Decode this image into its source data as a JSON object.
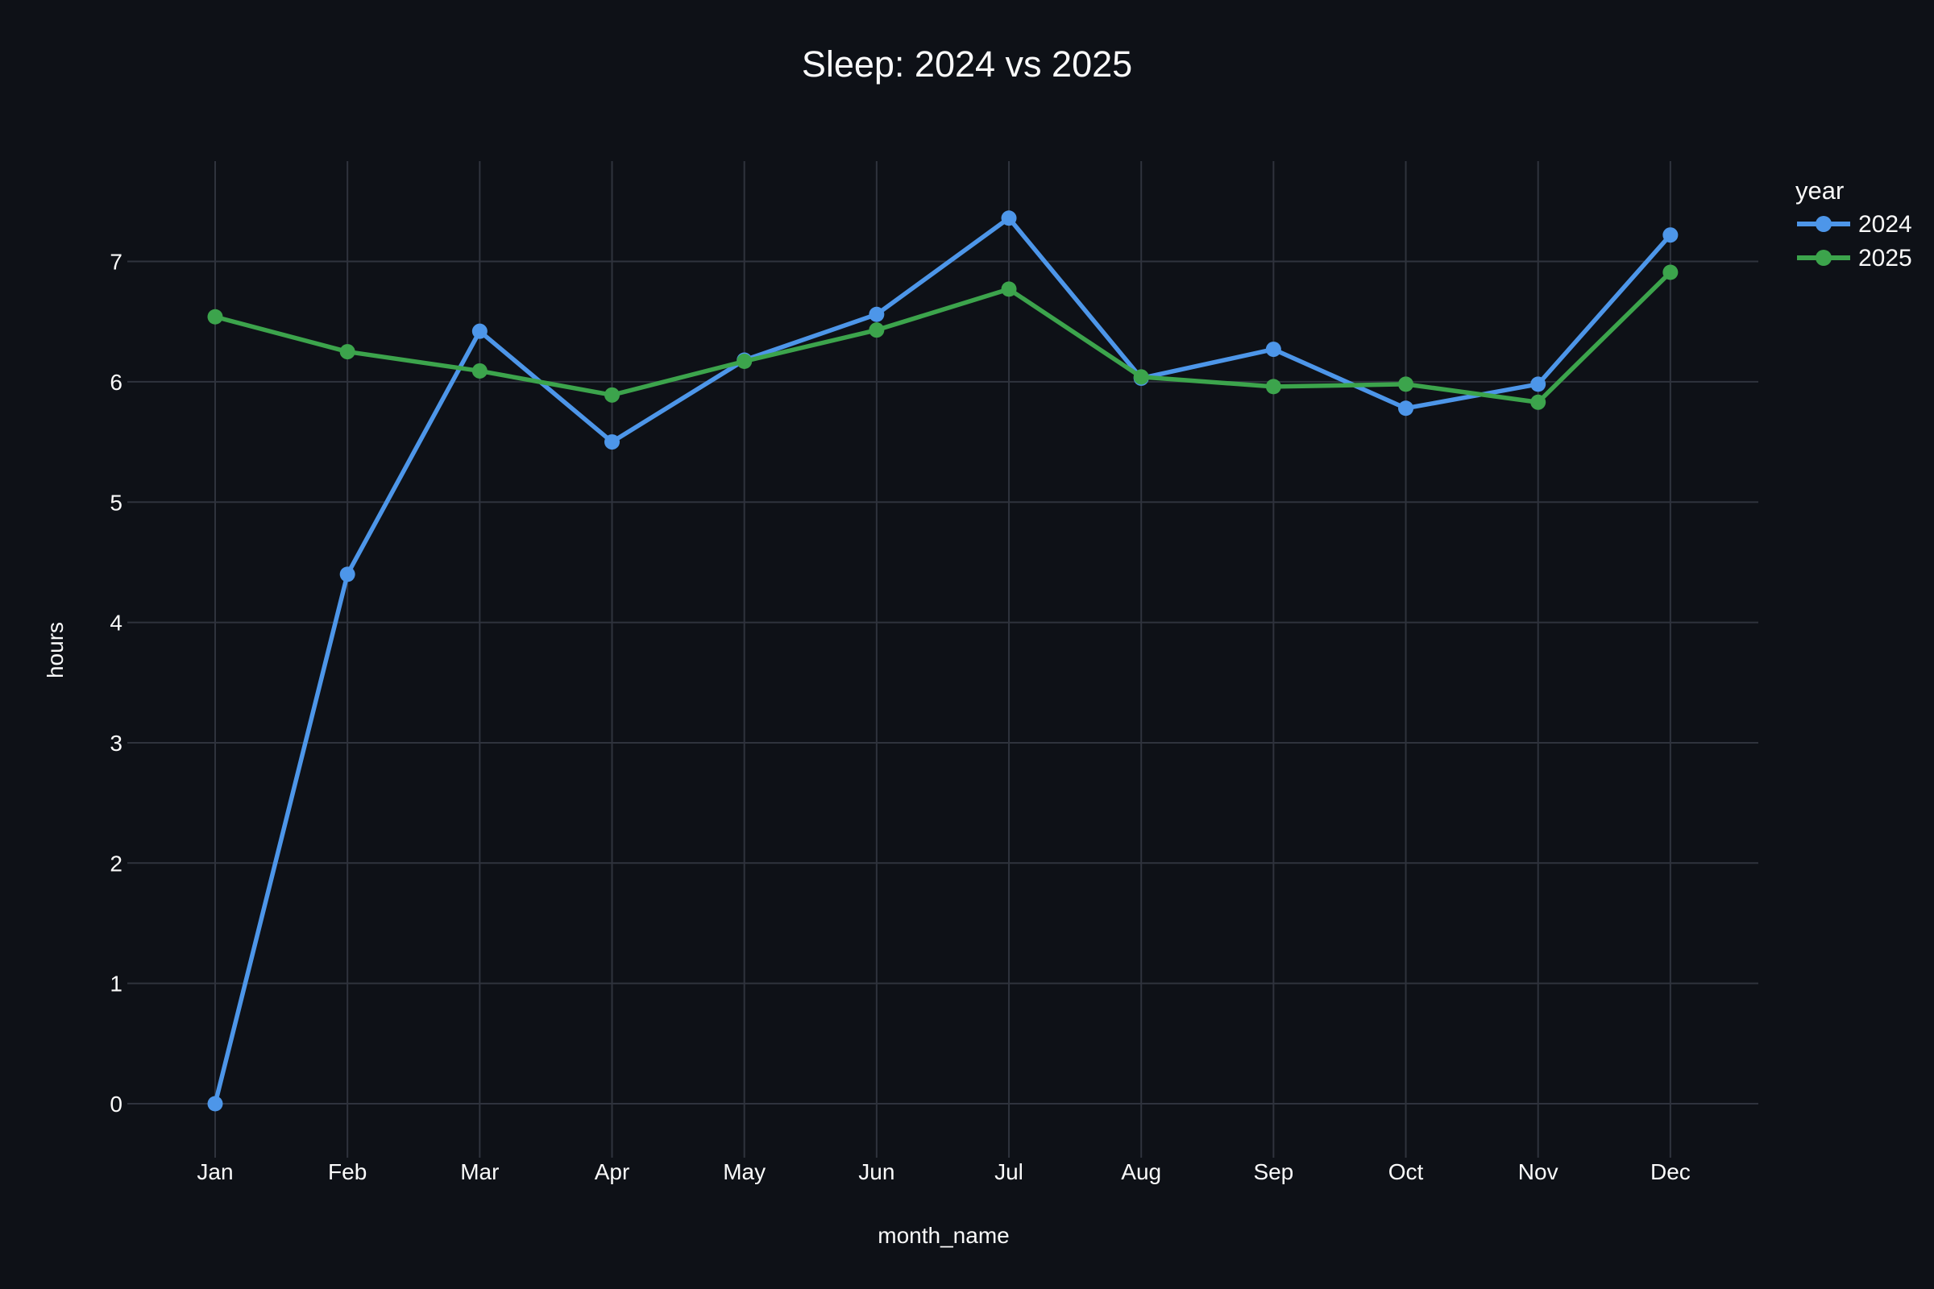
{
  "figure": {
    "background": "#0e1117",
    "grid_color": "#2f333d",
    "text_color": "#fafafa"
  },
  "chart_data": {
    "type": "line",
    "title": "Sleep: 2024 vs 2025",
    "xlabel": "month_name",
    "ylabel": "hours",
    "legend_title": "year",
    "legend_position": "top-right",
    "grid": true,
    "categories": [
      "Jan",
      "Feb",
      "Mar",
      "Apr",
      "May",
      "Jun",
      "Jul",
      "Aug",
      "Sep",
      "Oct",
      "Nov",
      "Dec"
    ],
    "yticks": [
      0,
      1,
      2,
      3,
      4,
      5,
      6,
      7
    ],
    "ylim": [
      -0.3,
      7.85
    ],
    "series": [
      {
        "name": "2024",
        "color": "#4d96e9",
        "marker": "circle",
        "values": [
          0.0,
          4.4,
          6.42,
          5.5,
          6.18,
          6.56,
          7.36,
          6.03,
          6.27,
          5.78,
          5.98,
          7.22
        ]
      },
      {
        "name": "2025",
        "color": "#3ca44c",
        "marker": "circle",
        "values": [
          6.54,
          6.25,
          6.09,
          5.89,
          6.17,
          6.43,
          6.77,
          6.04,
          5.96,
          5.98,
          5.83,
          6.91
        ]
      }
    ]
  }
}
